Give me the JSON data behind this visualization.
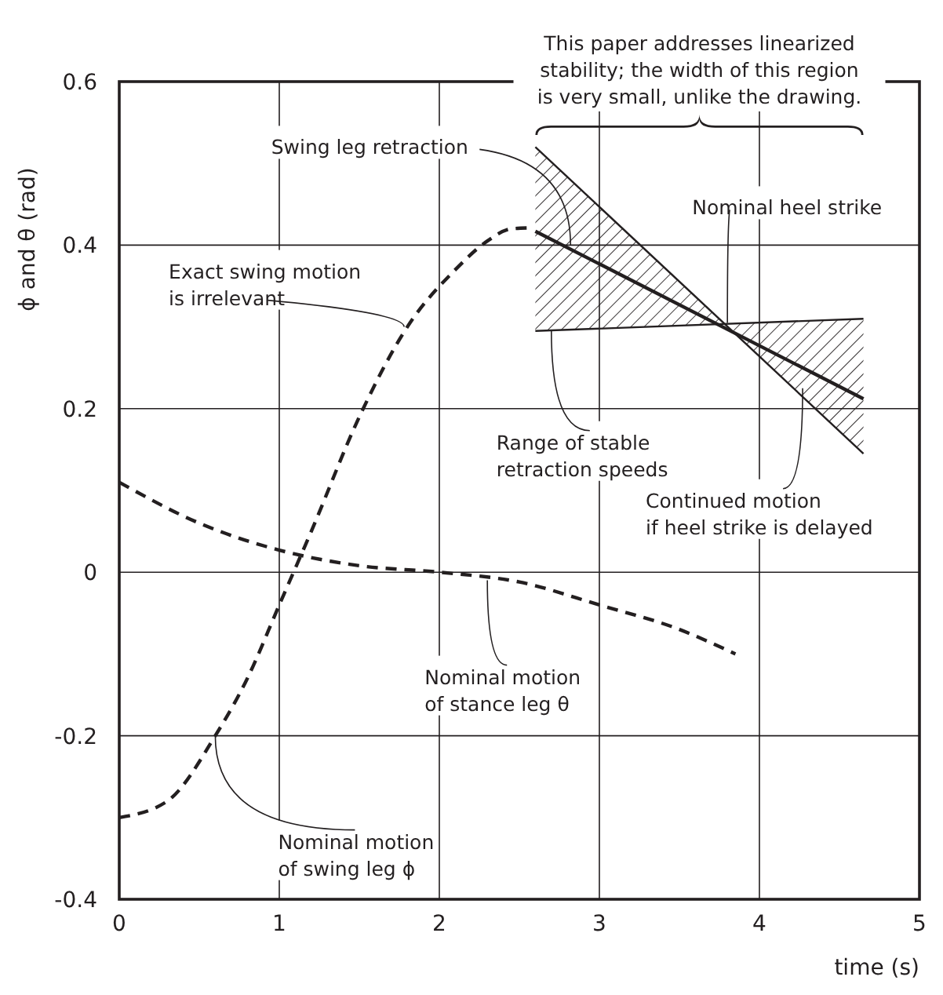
{
  "chart_data": {
    "type": "line",
    "xlabel": "time (s)",
    "ylabel": "ϕ and θ (rad)",
    "xlim": [
      0,
      5
    ],
    "ylim": [
      -0.4,
      0.6
    ],
    "xticks": [
      0,
      1,
      2,
      3,
      4,
      5
    ],
    "yticks": [
      -0.4,
      -0.2,
      0,
      0.2,
      0.4,
      0.6
    ],
    "grid": true,
    "series": [
      {
        "color": "#231f20",
        "line_style": "dashed",
        "x": [
          0,
          0.3,
          0.6,
          0.8,
          1,
          1.2,
          1.5,
          1.8,
          2.1,
          2.3,
          2.45,
          2.55
        ],
        "values": [
          -0.3,
          -0.28,
          -0.2,
          -0.13,
          -0.04,
          0.05,
          0.19,
          0.3,
          0.37,
          0.405,
          0.42,
          0.421
        ]
      },
      {
        "color": "#231f20",
        "line_style": "dashed",
        "x": [
          0,
          0.5,
          1,
          1.5,
          2,
          2.5,
          3,
          3.5,
          3.85
        ],
        "values": [
          0.11,
          0.06,
          0.027,
          0.008,
          0,
          -0.012,
          -0.04,
          -0.07,
          -0.1
        ]
      },
      {
        "color": "#231f20",
        "line_style": "solid",
        "x": [
          2.6,
          4.65
        ],
        "values": [
          0.417,
          0.212
        ]
      },
      {
        "color": "#231f20",
        "line_style": "solid",
        "x": [
          2.6,
          4.65
        ],
        "values": [
          0.52,
          0.145
        ]
      },
      {
        "color": "#231f20",
        "line_style": "solid",
        "x": [
          2.6,
          4.65
        ],
        "values": [
          0.295,
          0.31
        ]
      }
    ],
    "annotations": [
      {
        "text": "Swing leg retraction",
        "x": 2.82,
        "y": 0.4
      },
      {
        "text": "Nominal heel strike",
        "x": 3.8,
        "y": 0.305
      },
      {
        "text": "Exact swing motion\nis irrelevant",
        "x": 1.78,
        "y": 0.3
      },
      {
        "text": "Range of stable\nretraction speeds",
        "x": 2.7,
        "y": 0.296
      },
      {
        "text": "Continued motion\nif heel strike is delayed",
        "x": 4.27,
        "y": 0.225
      },
      {
        "text": "Nominal motion\nof stance leg θ",
        "x": 2.3,
        "y": -0.01
      },
      {
        "text": "Nominal motion\nof swing leg ϕ",
        "x": 0.6,
        "y": -0.2
      },
      "This paper addresses linearized\nstability; the width of this region\nis very small, unlike the drawing."
    ]
  }
}
